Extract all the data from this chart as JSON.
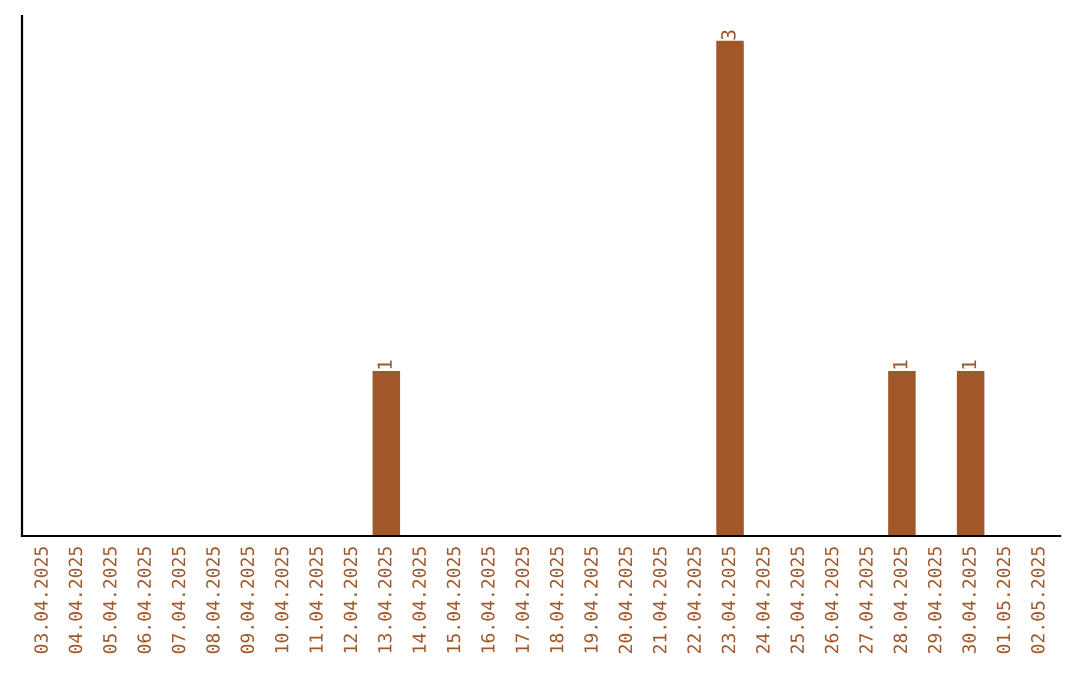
{
  "chart_data": {
    "type": "bar",
    "categories": [
      "03.04.2025",
      "04.04.2025",
      "05.04.2025",
      "06.04.2025",
      "07.04.2025",
      "08.04.2025",
      "09.04.2025",
      "10.04.2025",
      "11.04.2025",
      "12.04.2025",
      "13.04.2025",
      "14.04.2025",
      "15.04.2025",
      "16.04.2025",
      "17.04.2025",
      "18.04.2025",
      "19.04.2025",
      "20.04.2025",
      "21.04.2025",
      "22.04.2025",
      "23.04.2025",
      "24.04.2025",
      "25.04.2025",
      "26.04.2025",
      "27.04.2025",
      "28.04.2025",
      "29.04.2025",
      "30.04.2025",
      "01.05.2025",
      "02.05.2025"
    ],
    "values": [
      0,
      0,
      0,
      0,
      0,
      0,
      0,
      0,
      0,
      0,
      1,
      0,
      0,
      0,
      0,
      0,
      0,
      0,
      0,
      0,
      3,
      0,
      0,
      0,
      0,
      1,
      0,
      1,
      0,
      0
    ],
    "value_labels": [
      null,
      null,
      null,
      null,
      null,
      null,
      null,
      null,
      null,
      null,
      "1",
      null,
      null,
      null,
      null,
      null,
      null,
      null,
      null,
      null,
      "3",
      null,
      null,
      null,
      null,
      "1",
      null,
      "1",
      null,
      null
    ],
    "color": "#a0572a",
    "grid": false,
    "legend": false,
    "tick_labels": "x"
  }
}
